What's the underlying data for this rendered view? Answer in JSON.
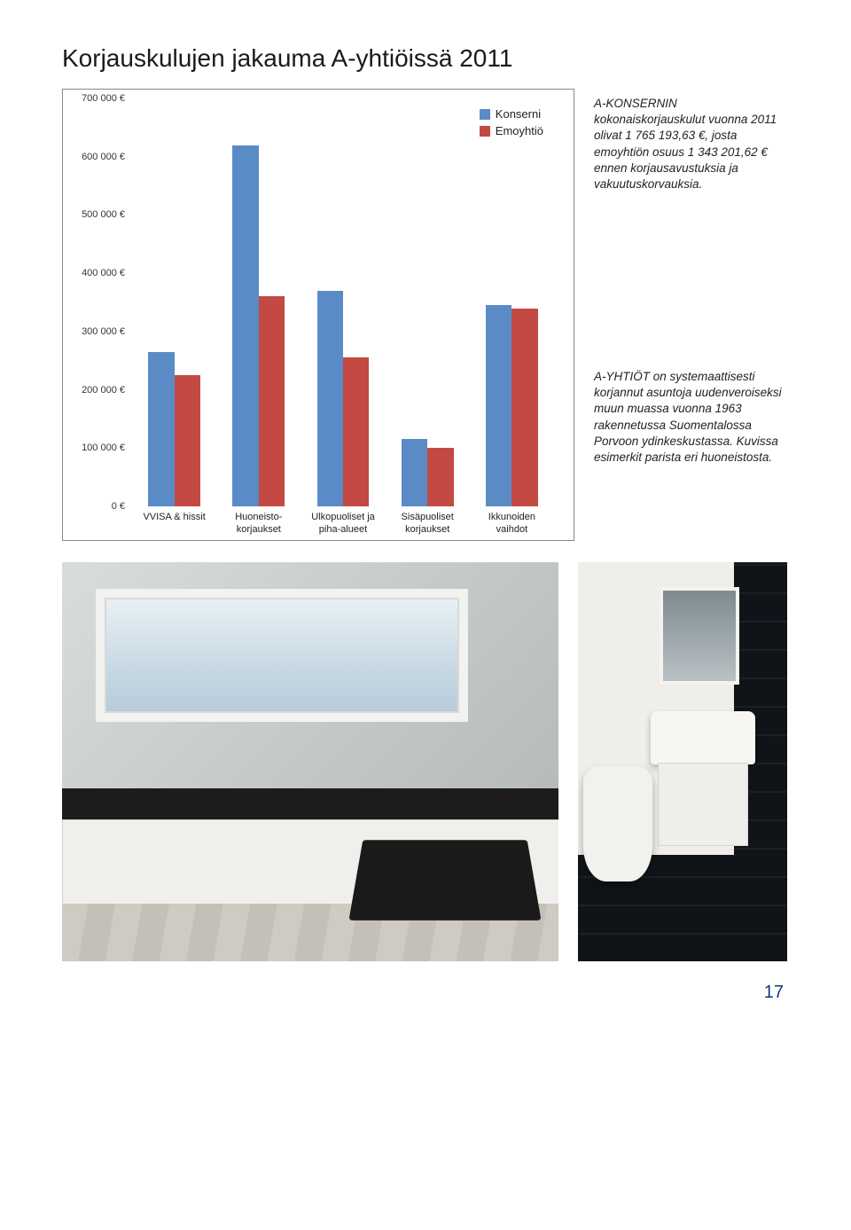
{
  "title": "Korjauskulujen jakauma A-yhtiöissä 2011",
  "chart": {
    "type": "bar",
    "ylim": [
      0,
      700000
    ],
    "ytick_step": 100000,
    "ytick_suffix": " €",
    "ytick_sep": " ",
    "legend": [
      {
        "label": "Konserni",
        "color": "#5a8bc6"
      },
      {
        "label": "Emoyhtiö",
        "color": "#c24a43"
      }
    ],
    "categories": [
      {
        "label_lines": [
          "VVISA & hissit"
        ],
        "values": [
          265000,
          225000
        ]
      },
      {
        "label_lines": [
          "Huoneisto-",
          "korjaukset"
        ],
        "values": [
          620000,
          360000
        ]
      },
      {
        "label_lines": [
          "Ulkopuoliset ja",
          "piha-alueet"
        ],
        "values": [
          370000,
          255000
        ]
      },
      {
        "label_lines": [
          "Sisäpuoliset",
          "korjaukset"
        ],
        "values": [
          115000,
          100000
        ]
      },
      {
        "label_lines": [
          "Ikkunoiden",
          "vaihdot"
        ],
        "values": [
          345000,
          340000
        ]
      }
    ],
    "colors": {
      "konserni": "#5a8bc6",
      "emoyhtio": "#c24a43"
    },
    "border_color": "#888888",
    "background_color": "#ffffff",
    "label_fontsize": 11,
    "tick_fontsize": 11,
    "bar_width": 0.44
  },
  "text_top": "A-KONSERNIN kokonaiskorjauskulut vuonna 2011 olivat 1 765 193,63 €, josta emoyhtiön osuus 1 343 201,62 € ennen korjausavustuksia ja vakuutuskorvauksia.",
  "text_mid": "A-YHTIÖT on systemaattisesti korjannut asuntoja uudenveroiseksi muun muassa vuonna 1963 rakennetussa Suomentalossa Porvoon ydinkeskustassa. Kuvissa esimerkit parista eri huoneistosta.",
  "page_number": "17"
}
